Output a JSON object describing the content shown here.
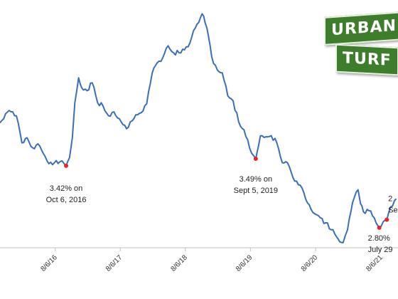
{
  "brand": {
    "word1": "URBAN",
    "word2": "TURF"
  },
  "colors": {
    "line": "#3a6fb8",
    "marker": "#e8262a",
    "axis": "#bfbfbf",
    "logo_green": "#3d7d2c"
  },
  "chart_data": {
    "type": "line",
    "title": "",
    "xlabel": "",
    "ylabel": "",
    "grid": false,
    "x_ticks": [
      "8/6/16",
      "8/6/17",
      "8/6/18",
      "8/6/19",
      "8/6/20",
      "8/6/21"
    ],
    "x_range": [
      "2015-10-01",
      "2021-12-01"
    ],
    "y_range": [
      2.6,
      4.95
    ],
    "series": [
      {
        "points": [
          [
            "2015-10-01",
            3.85
          ],
          [
            "2015-11-01",
            3.94
          ],
          [
            "2015-12-01",
            3.96
          ],
          [
            "2016-01-01",
            3.92
          ],
          [
            "2016-02-01",
            3.65
          ],
          [
            "2016-03-01",
            3.7
          ],
          [
            "2016-04-01",
            3.6
          ],
          [
            "2016-05-01",
            3.64
          ],
          [
            "2016-06-01",
            3.54
          ],
          [
            "2016-07-01",
            3.44
          ],
          [
            "2016-08-01",
            3.45
          ],
          [
            "2016-09-01",
            3.46
          ],
          [
            "2016-10-06",
            3.42
          ],
          [
            "2016-10-25",
            3.5
          ],
          [
            "2016-11-10",
            3.7
          ],
          [
            "2016-11-24",
            4.05
          ],
          [
            "2016-12-15",
            4.3
          ],
          [
            "2017-01-01",
            4.2
          ],
          [
            "2017-02-01",
            4.17
          ],
          [
            "2017-03-01",
            4.25
          ],
          [
            "2017-04-01",
            4.05
          ],
          [
            "2017-05-01",
            4.02
          ],
          [
            "2017-06-01",
            3.92
          ],
          [
            "2017-07-01",
            3.96
          ],
          [
            "2017-08-01",
            3.89
          ],
          [
            "2017-09-10",
            3.79
          ],
          [
            "2017-10-01",
            3.86
          ],
          [
            "2017-11-01",
            3.93
          ],
          [
            "2017-12-01",
            3.95
          ],
          [
            "2018-01-01",
            4.04
          ],
          [
            "2018-02-01",
            4.35
          ],
          [
            "2018-03-01",
            4.45
          ],
          [
            "2018-04-01",
            4.5
          ],
          [
            "2018-05-01",
            4.62
          ],
          [
            "2018-06-01",
            4.55
          ],
          [
            "2018-07-01",
            4.55
          ],
          [
            "2018-08-01",
            4.58
          ],
          [
            "2018-09-01",
            4.65
          ],
          [
            "2018-10-01",
            4.8
          ],
          [
            "2018-11-08",
            4.94
          ],
          [
            "2018-11-25",
            4.85
          ],
          [
            "2018-12-15",
            4.7
          ],
          [
            "2019-01-01",
            4.51
          ],
          [
            "2019-02-01",
            4.38
          ],
          [
            "2019-03-01",
            4.35
          ],
          [
            "2019-04-01",
            4.12
          ],
          [
            "2019-05-01",
            4.07
          ],
          [
            "2019-06-01",
            3.86
          ],
          [
            "2019-07-01",
            3.78
          ],
          [
            "2019-08-01",
            3.6
          ],
          [
            "2019-09-05",
            3.49
          ],
          [
            "2019-10-01",
            3.72
          ],
          [
            "2019-11-01",
            3.71
          ],
          [
            "2019-12-01",
            3.72
          ],
          [
            "2020-01-01",
            3.65
          ],
          [
            "2020-02-01",
            3.45
          ],
          [
            "2020-03-01",
            3.45
          ],
          [
            "2020-04-01",
            3.3
          ],
          [
            "2020-05-01",
            3.23
          ],
          [
            "2020-06-01",
            3.15
          ],
          [
            "2020-07-01",
            3.03
          ],
          [
            "2020-08-01",
            2.94
          ],
          [
            "2020-09-01",
            2.9
          ],
          [
            "2020-10-01",
            2.85
          ],
          [
            "2020-11-01",
            2.78
          ],
          [
            "2020-12-01",
            2.71
          ],
          [
            "2021-01-07",
            2.65
          ],
          [
            "2021-02-01",
            2.78
          ],
          [
            "2021-03-01",
            3.05
          ],
          [
            "2021-04-01",
            3.18
          ],
          [
            "2021-04-15",
            3.04
          ],
          [
            "2021-05-01",
            2.96
          ],
          [
            "2021-06-01",
            2.97
          ],
          [
            "2021-07-01",
            2.9
          ],
          [
            "2021-07-29",
            2.8
          ],
          [
            "2021-08-20",
            2.86
          ],
          [
            "2021-09-09",
            2.88
          ],
          [
            "2021-10-01",
            3.01
          ],
          [
            "2021-11-01",
            3.09
          ]
        ]
      }
    ],
    "annotations": [
      {
        "text_lines": [
          "3.42% on",
          "Oct 6, 2016"
        ],
        "x": "2016-10-06",
        "y": 3.42
      },
      {
        "text_lines": [
          "3.49% on",
          "Sept 5, 2019"
        ],
        "x": "2019-09-05",
        "y": 3.49
      },
      {
        "text_lines": [
          "2.80%",
          "July 29"
        ],
        "x": "2021-07-29",
        "y": 2.8
      },
      {
        "text_lines": [
          "2",
          "Sep"
        ],
        "x": "2021-09-09",
        "y": 2.88
      }
    ]
  }
}
